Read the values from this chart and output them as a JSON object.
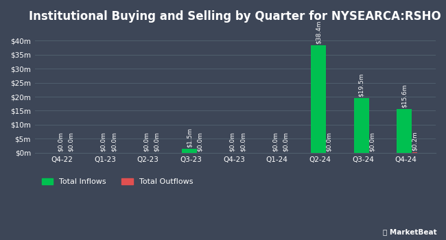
{
  "title": "Institutional Buying and Selling by Quarter for NYSEARCA:RSHO",
  "background_color": "#3d4657",
  "plot_bg_color": "#3d4657",
  "categories": [
    "Q4-22",
    "Q1-23",
    "Q2-23",
    "Q3-23",
    "Q4-23",
    "Q1-24",
    "Q2-24",
    "Q3-24",
    "Q4-24"
  ],
  "inflows": [
    0.0,
    0.0,
    0.0,
    1.5,
    0.0,
    0.0,
    38.4,
    19.5,
    15.6
  ],
  "outflows": [
    0.0,
    0.0,
    0.0,
    0.0,
    0.0,
    0.0,
    0.0,
    0.0,
    0.2
  ],
  "inflow_labels": [
    "$0.0m",
    "$0.0m",
    "$0.0m",
    "$1.5m",
    "$0.0m",
    "$0.0m",
    "$38.4m",
    "$19.5m",
    "$15.6m"
  ],
  "outflow_labels": [
    "$0.0m",
    "$0.0m",
    "$0.0m",
    "$0.0m",
    "$0.0m",
    "$0.0m",
    "$0.0m",
    "$0.0m",
    "$0.2m"
  ],
  "inflow_color": "#00c050",
  "outflow_color": "#e05050",
  "grid_color": "#505f6e",
  "text_color": "#ffffff",
  "ylabel_ticks": [
    0,
    5,
    10,
    15,
    20,
    25,
    30,
    35,
    40
  ],
  "ylim": [
    0,
    44
  ],
  "inflow_bar_width": 0.35,
  "outflow_bar_width": 0.12,
  "title_fontsize": 12,
  "label_fontsize": 6.5,
  "tick_fontsize": 7.5,
  "legend_fontsize": 8
}
